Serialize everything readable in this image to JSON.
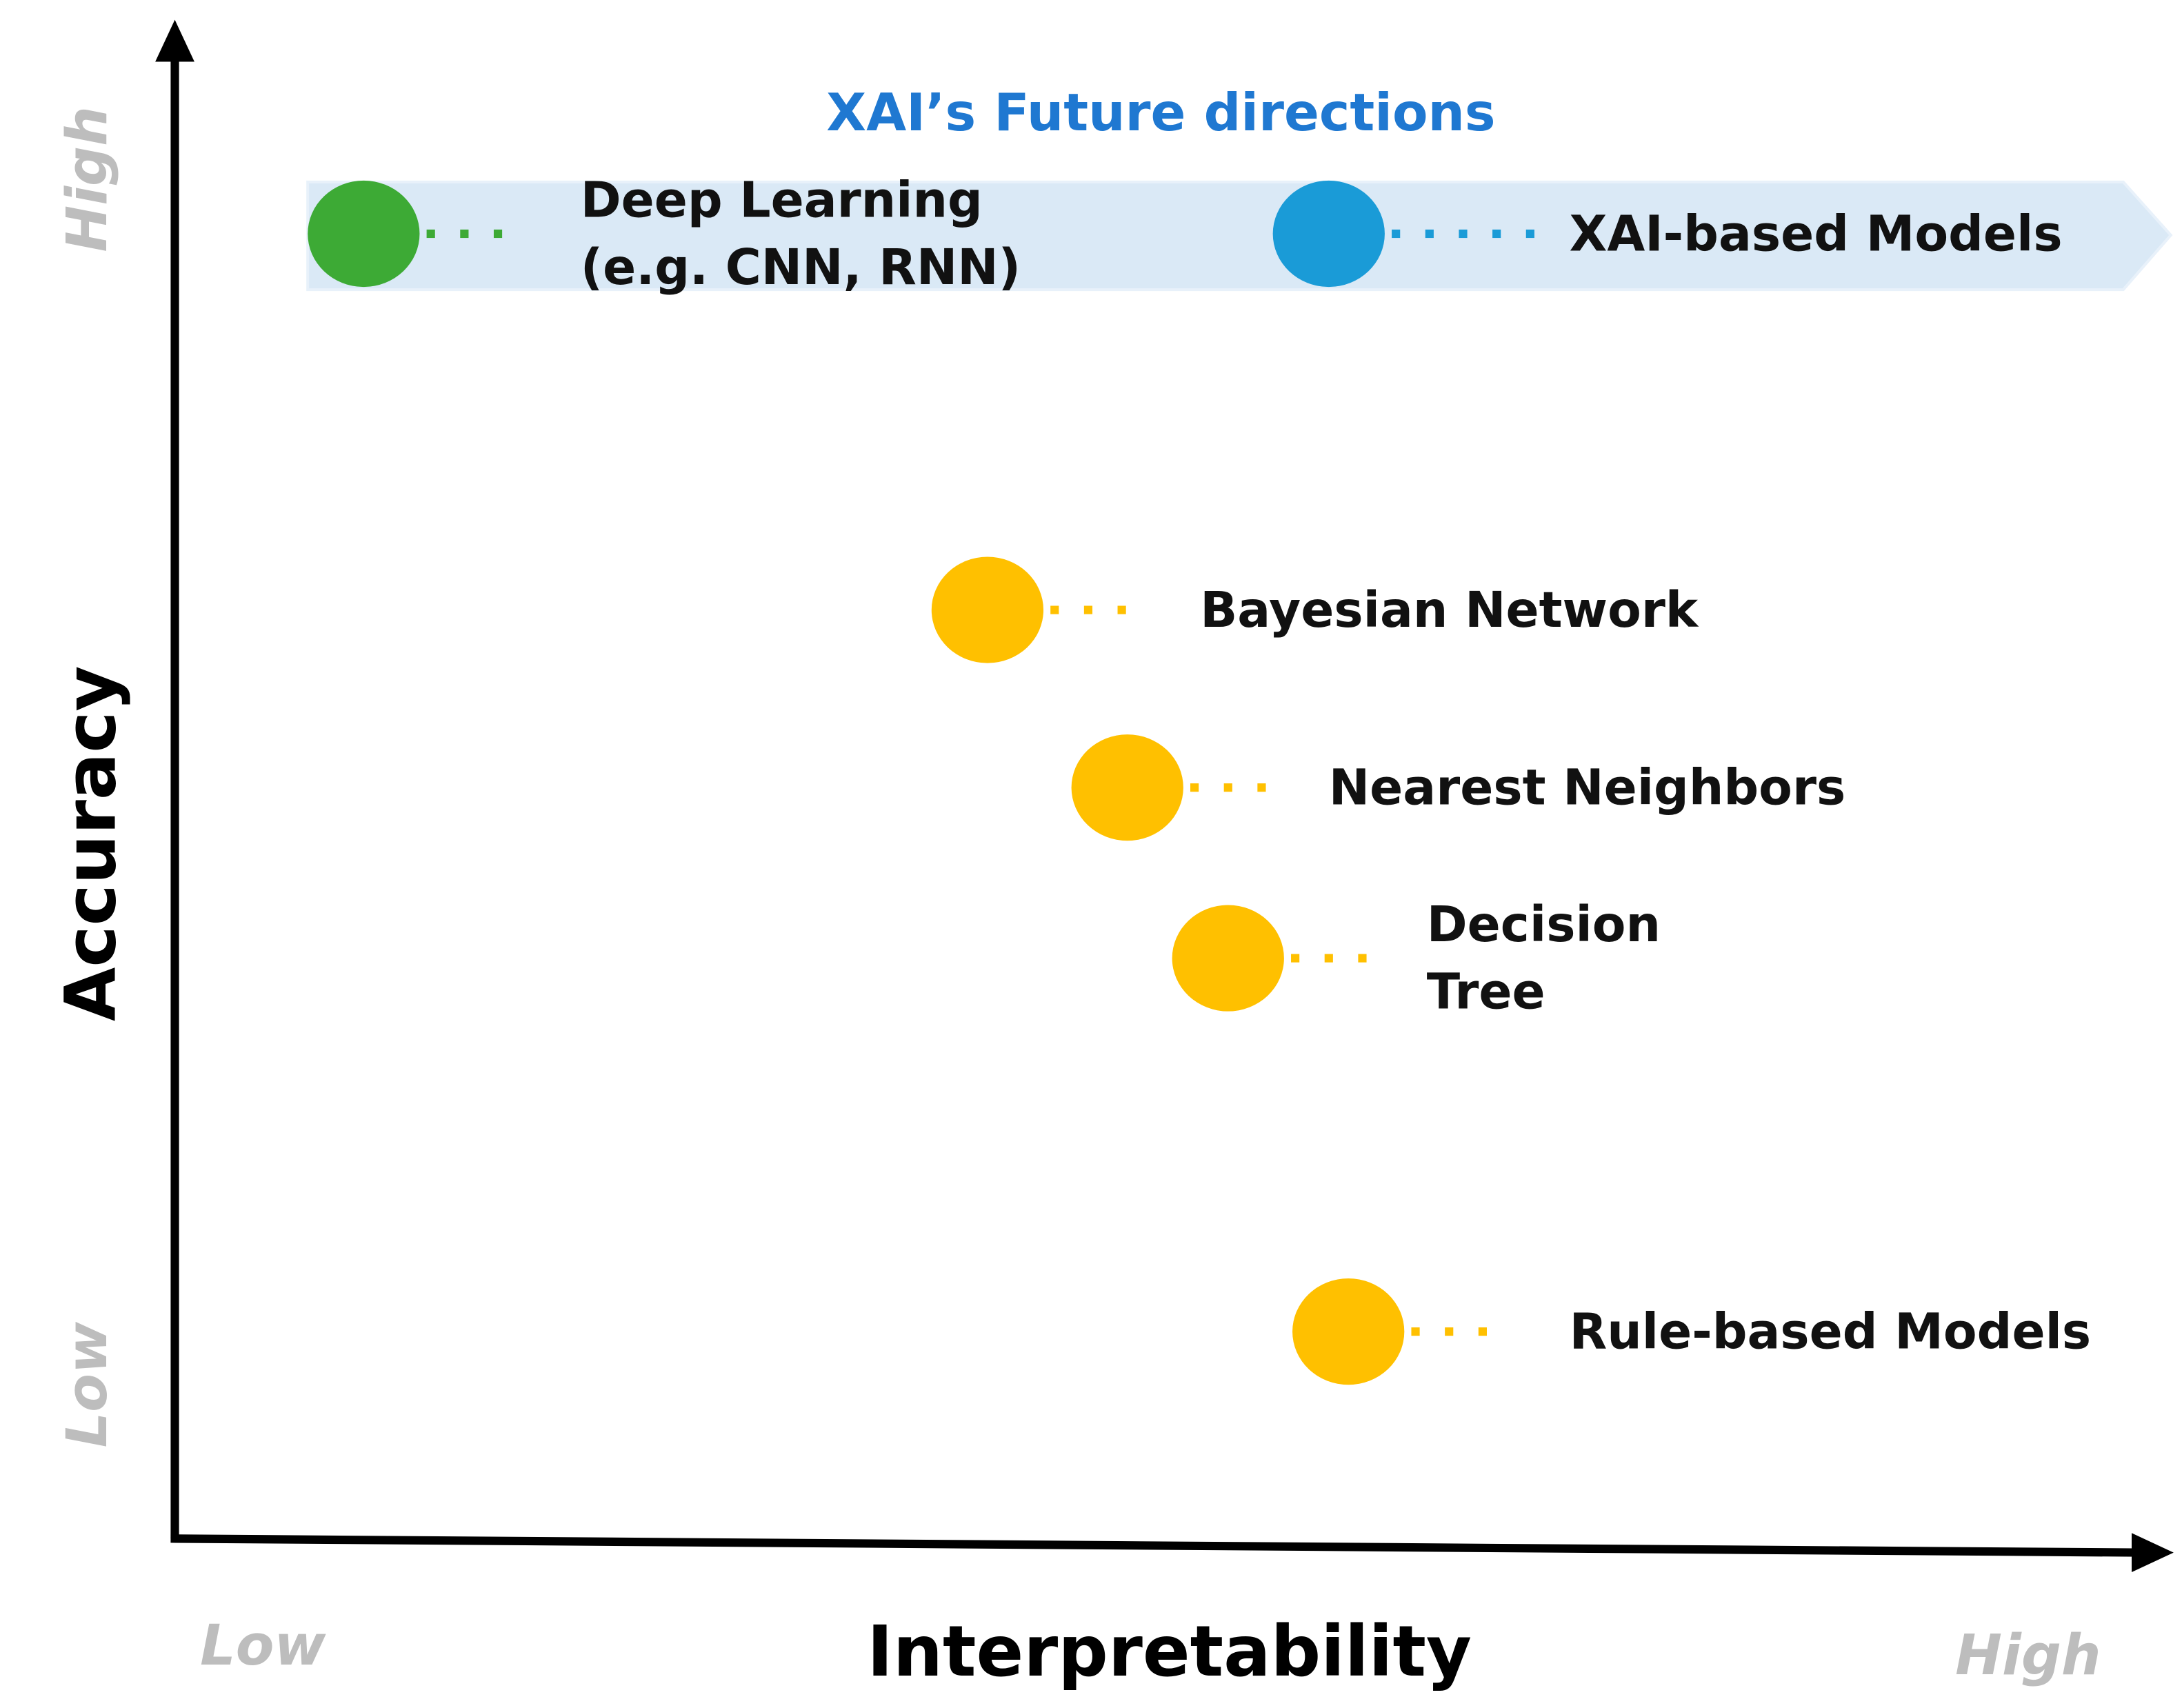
{
  "title": "XAI’s Future directions",
  "y_axis": {
    "label": "Accuracy",
    "low": "Low",
    "high": "High"
  },
  "x_axis": {
    "label": "Interpretability",
    "low": "Low",
    "high": "High"
  },
  "future_band": {
    "from": {
      "label_lines": [
        "Deep Learning",
        "(e.g. CNN, RNN)"
      ],
      "color": "#3daa35"
    },
    "to": {
      "label": "XAI-based Models",
      "color": "#1a9bd7"
    },
    "band_color": "#dae9f6",
    "title_color": "#1f78d1"
  },
  "models": [
    {
      "label_lines": [
        "Bayesian Network"
      ],
      "color": "#ffc000"
    },
    {
      "label_lines": [
        "Nearest Neighbors"
      ],
      "color": "#ffc000"
    },
    {
      "label_lines": [
        "Decision",
        "Tree"
      ],
      "color": "#ffc000"
    },
    {
      "label_lines": [
        "Rule-based Models"
      ],
      "color": "#ffc000"
    }
  ]
}
